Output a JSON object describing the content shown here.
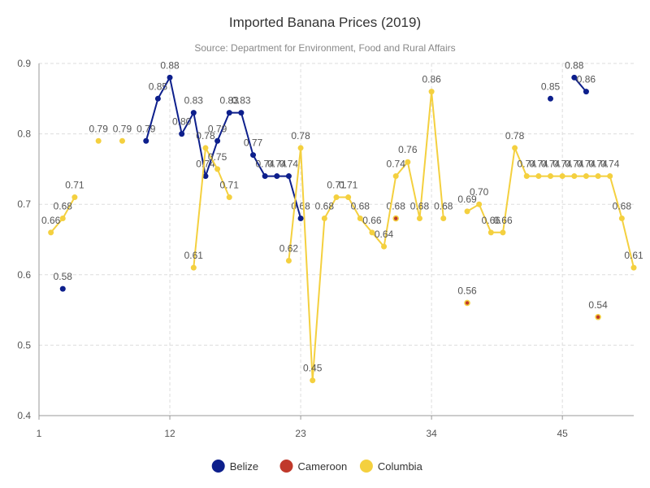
{
  "chart_data": {
    "type": "line",
    "title": "Imported Banana Prices (2019)",
    "subtitle": "Source: Department for Environment, Food and Rural Affairs",
    "xlabel": "",
    "ylabel": "",
    "xlim": [
      1,
      51
    ],
    "ylim": [
      0.4,
      0.9
    ],
    "x_ticks": [
      1,
      12,
      23,
      34,
      45
    ],
    "y_ticks": [
      0.4,
      0.5,
      0.6,
      0.7,
      0.8,
      0.9
    ],
    "grid": true,
    "legend_position": "bottom",
    "series": [
      {
        "name": "Belize",
        "color": "#0d1f8c",
        "points": [
          [
            3,
            0.58
          ],
          [
            4,
            null
          ],
          [
            10,
            0.79
          ],
          [
            11,
            0.85
          ],
          [
            12,
            0.88
          ],
          [
            13,
            0.8
          ],
          [
            14,
            0.83
          ],
          [
            15,
            0.74
          ],
          [
            16,
            0.79
          ],
          [
            17,
            0.83
          ],
          [
            18,
            0.83
          ],
          [
            19,
            0.77
          ],
          [
            20,
            0.74
          ],
          [
            21,
            0.74
          ],
          [
            22,
            0.74
          ],
          [
            23,
            0.68
          ],
          [
            24,
            null
          ],
          [
            44,
            0.85
          ],
          [
            45,
            null
          ],
          [
            46,
            0.88
          ],
          [
            47,
            0.86
          ]
        ]
      },
      {
        "name": "Cameroon",
        "color": "#c0392b",
        "points": [
          [
            31,
            0.68
          ],
          [
            32,
            null
          ],
          [
            37,
            0.56
          ],
          [
            38,
            null
          ],
          [
            48,
            0.54
          ]
        ]
      },
      {
        "name": "Columbia",
        "color": "#f4d03f",
        "points": [
          [
            2,
            0.66
          ],
          [
            3,
            0.68
          ],
          [
            4,
            0.71
          ],
          [
            5,
            null
          ],
          [
            6,
            0.79
          ],
          [
            7,
            null
          ],
          [
            8,
            0.79
          ],
          [
            9,
            null
          ],
          [
            14,
            0.61
          ],
          [
            15,
            0.78
          ],
          [
            16,
            0.75
          ],
          [
            17,
            0.71
          ],
          [
            18,
            null
          ],
          [
            22,
            0.62
          ],
          [
            23,
            0.78
          ],
          [
            24,
            0.45
          ],
          [
            25,
            0.68
          ],
          [
            26,
            0.71
          ],
          [
            27,
            0.71
          ],
          [
            28,
            0.68
          ],
          [
            29,
            0.66
          ],
          [
            30,
            0.64
          ],
          [
            31,
            0.74
          ],
          [
            32,
            0.76
          ],
          [
            33,
            0.68
          ],
          [
            34,
            0.86
          ],
          [
            35,
            0.68
          ],
          [
            36,
            null
          ],
          [
            37,
            0.69
          ],
          [
            38,
            0.7
          ],
          [
            39,
            0.66
          ],
          [
            40,
            0.66
          ],
          [
            41,
            0.78
          ],
          [
            42,
            0.74
          ],
          [
            43,
            0.74
          ],
          [
            44,
            0.74
          ],
          [
            45,
            0.74
          ],
          [
            46,
            0.74
          ],
          [
            47,
            0.74
          ],
          [
            48,
            0.74
          ],
          [
            49,
            0.74
          ],
          [
            50,
            0.68
          ],
          [
            51,
            0.61
          ]
        ]
      }
    ]
  }
}
